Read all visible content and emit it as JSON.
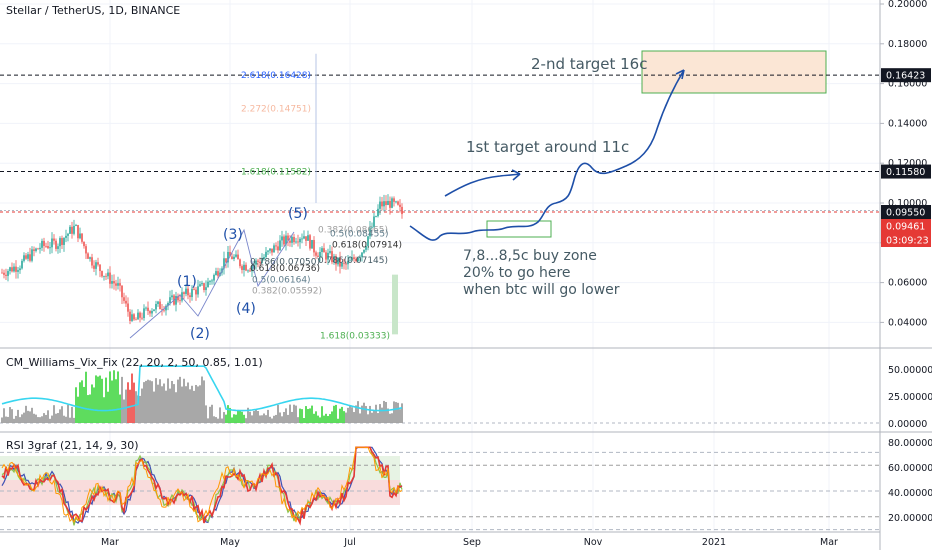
{
  "chart_data": {
    "type": "candlestick",
    "title": "Stellar / TetherUS, 1D, BINANCE",
    "x_tick_labels": [
      "Mar",
      "May",
      "Jul",
      "Sep",
      "Nov",
      "2021",
      "Mar"
    ],
    "y_tick_labels": [
      "0.20000",
      "0.18000",
      "0.16000",
      "0.14000",
      "0.12000",
      "0.10000",
      "0.08000",
      "0.06000",
      "0.04000"
    ],
    "ylim": [
      0.028,
      0.2
    ],
    "price_tags": [
      {
        "text": "0.16423",
        "value": 0.16423,
        "color": "#131722"
      },
      {
        "text": "0.11580",
        "value": 0.1158,
        "color": "#131722"
      },
      {
        "text": "0.09550",
        "value": 0.0955,
        "color": "#131722"
      },
      {
        "text": "0.09461",
        "value": 0.09461,
        "color": "#e53935"
      },
      {
        "text": "03:09:23",
        "value": 0.0876,
        "color": "#e53935"
      }
    ],
    "fib_levels": [
      {
        "text": "2.618(0.16428)",
        "value": 0.16428,
        "color": "#2962ff"
      },
      {
        "text": "2.272(0.14751)",
        "value": 0.14751,
        "color": "#f6b9a0"
      },
      {
        "text": "1.618(0.11582)",
        "value": 0.11582,
        "color": "#4caf50"
      },
      {
        "text": "0.382(0.08665)",
        "value": 0.08665,
        "color": "#9e9e9e"
      },
      {
        "text": "0.5(0.08455)",
        "value": 0.08455,
        "color": "#607d8b"
      },
      {
        "text": "0.618(0.07914)",
        "value": 0.07914,
        "color": "#333333"
      },
      {
        "text": "0.786(0.07145)",
        "value": 0.07145,
        "color": "#455a64"
      },
      {
        "text": "0.786(0.07050)",
        "value": 0.0705,
        "color": "#455a64"
      },
      {
        "text": "0.618(0.06736)",
        "value": 0.06736,
        "color": "#333333"
      },
      {
        "text": "0.5(0.06164)",
        "value": 0.06164,
        "color": "#607d8b"
      },
      {
        "text": "0.382(0.05592)",
        "value": 0.05592,
        "color": "#9e9e9e"
      },
      {
        "text": "1.618(0.03333)",
        "value": 0.03333,
        "color": "#4caf50"
      }
    ],
    "wave_labels": [
      "(1)",
      "(2)",
      "(3)",
      "(4)",
      "(5)"
    ],
    "annotations": [
      "2-nd target 16c",
      "1st target around 11c",
      "7,8...8,5c buy zone",
      "20% to go here",
      "when btc will go lower"
    ],
    "vix_indicator": {
      "title": "CM_Williams_Vix_Fix (22, 20, 2, 50, 0.85, 1.01)",
      "y_tick_labels": [
        "50.00000",
        "25.00000",
        "0.00000"
      ],
      "ylim": [
        0,
        60
      ]
    },
    "rsi_indicator": {
      "title": "RSI 3graf (21, 14, 9, 30)",
      "y_tick_labels": [
        "80.00000",
        "60.00000",
        "40.00000",
        "20.00000"
      ],
      "ylim": [
        15,
        85
      ]
    },
    "grid": true
  },
  "colors": {
    "up": "#26a69a",
    "down": "#ef5350",
    "drawing": "#1e4fa8",
    "target_box_stroke": "#4caf50",
    "target_box_fill": "#fbe6d5",
    "buy_box_stroke": "#4caf50"
  }
}
